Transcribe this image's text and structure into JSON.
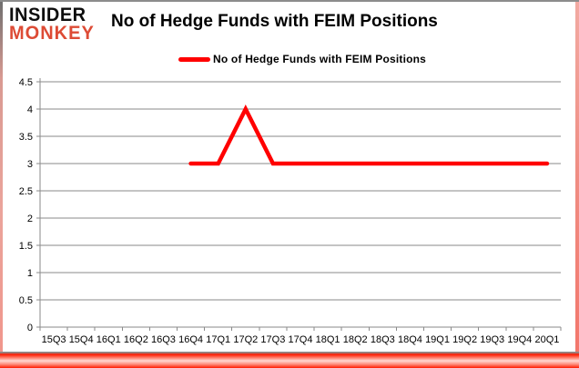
{
  "header": {
    "logo": {
      "line1": "INSIDER",
      "line2": "MONKEY",
      "brand_color": "#dd4b35"
    },
    "title": "No of Hedge Funds with FEIM Positions"
  },
  "legend": {
    "label": "No of Hedge Funds with FEIM Positions",
    "swatch_color": "#ff0000"
  },
  "chart_data": {
    "type": "line",
    "title": "No of Hedge Funds with FEIM Positions",
    "categories": [
      "15Q3",
      "15Q4",
      "16Q1",
      "16Q2",
      "16Q3",
      "16Q4",
      "17Q1",
      "17Q2",
      "17Q3",
      "17Q4",
      "18Q1",
      "18Q2",
      "18Q3",
      "18Q4",
      "19Q1",
      "19Q2",
      "19Q3",
      "19Q4",
      "20Q1"
    ],
    "series": [
      {
        "name": "No of Hedge Funds with FEIM Positions",
        "color": "#ff0000",
        "values": [
          null,
          null,
          null,
          null,
          null,
          3,
          3,
          4,
          3,
          3,
          3,
          3,
          3,
          3,
          3,
          3,
          3,
          3,
          3
        ]
      }
    ],
    "xlabel": "",
    "ylabel": "",
    "ylim": [
      0,
      4.5
    ],
    "yticks": [
      0,
      0.5,
      1,
      1.5,
      2,
      2.5,
      3,
      3.5,
      4,
      4.5
    ],
    "grid": true,
    "legend_position": "top-center",
    "colors": {
      "grid": "#8a8a8a",
      "axis": "#8a8a8a",
      "tick_text": "#000000"
    }
  }
}
